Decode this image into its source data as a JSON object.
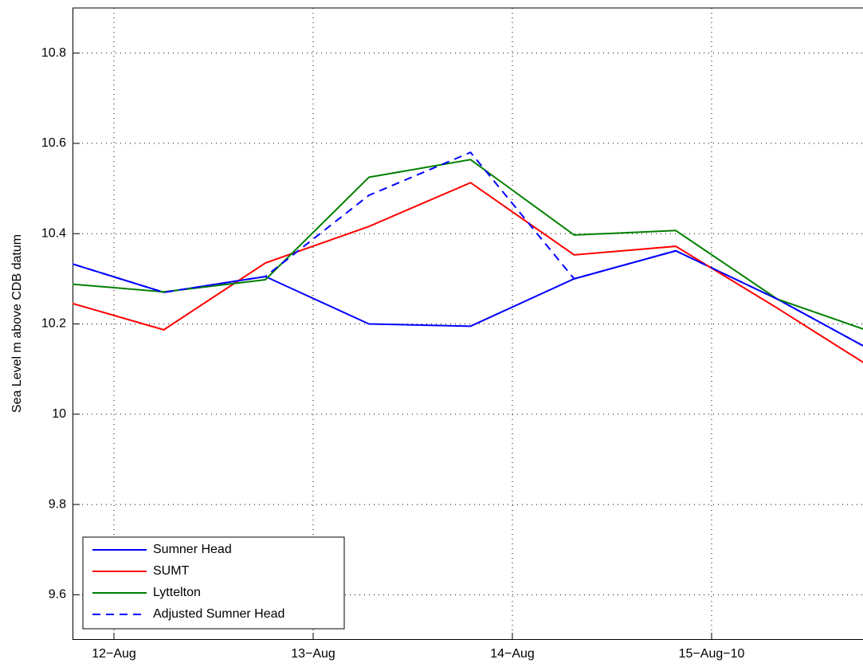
{
  "chart_data": {
    "type": "line",
    "ylabel": "Sea Level m above CDB datum",
    "x": [
      11.74,
      12.25,
      12.76,
      13.28,
      13.79,
      14.31,
      14.82,
      15.33,
      15.85
    ],
    "series": [
      {
        "name": "Sumner Head",
        "color": "#0000ff",
        "linestyle": "solid",
        "values": [
          10.34,
          10.27,
          10.305,
          10.2,
          10.195,
          10.3,
          10.362,
          10.255,
          10.13
        ]
      },
      {
        "name": "SUMT",
        "color": "#ff0000",
        "linestyle": "solid",
        "values": [
          10.252,
          10.187,
          10.335,
          10.416,
          10.513,
          10.353,
          10.372,
          10.235,
          10.09
        ]
      },
      {
        "name": "Lyttelton",
        "color": "#008000",
        "linestyle": "solid",
        "values": [
          10.29,
          10.271,
          10.298,
          10.525,
          10.564,
          10.397,
          10.407,
          10.255,
          10.175
        ]
      },
      {
        "name": "Adjusted Sumner Head",
        "color": "#0000ff",
        "linestyle": "dashed",
        "values": [
          10.34,
          10.27,
          10.305,
          10.485,
          10.58,
          10.3,
          10.362,
          10.255,
          10.13
        ]
      }
    ],
    "xlim": [
      11.792,
      15.76
    ],
    "ylim": [
      9.5,
      10.9
    ],
    "xticks": [
      {
        "value": 12,
        "label": "12−Aug"
      },
      {
        "value": 13,
        "label": "13−Aug"
      },
      {
        "value": 14,
        "label": "14−Aug"
      },
      {
        "value": 15,
        "label": "15−Aug−10"
      }
    ],
    "yticks": [
      9.6,
      9.8,
      10,
      10.2,
      10.4,
      10.6,
      10.8
    ],
    "grid": true,
    "legend": "lower left"
  }
}
